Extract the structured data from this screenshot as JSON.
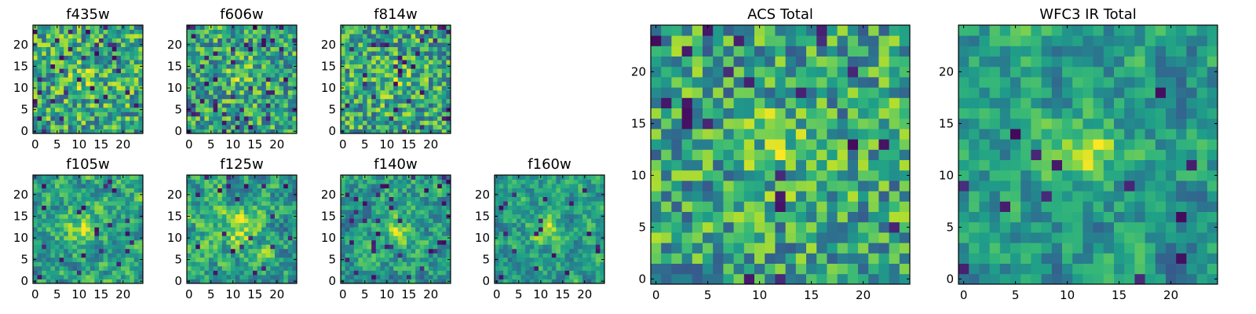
{
  "figure": {
    "description_colormap": "viridis-like"
  },
  "chart_data": [
    {
      "type": "heatmap",
      "title": "f435w",
      "xticks": [
        0,
        5,
        10,
        15,
        20
      ],
      "yticks": [
        0,
        5,
        10,
        15,
        20
      ],
      "xlim": [
        -0.5,
        24.5
      ],
      "ylim": [
        -0.5,
        24.5
      ],
      "grid": false,
      "seed": 11,
      "smooth": 0,
      "blob": 0.2,
      "cx": 12,
      "cy": 12,
      "sigma": 3,
      "dark_fraction": 0.06
    },
    {
      "type": "heatmap",
      "title": "f606w",
      "xticks": [
        0,
        5,
        10,
        15,
        20
      ],
      "yticks": [
        0,
        5,
        10,
        15,
        20
      ],
      "xlim": [
        -0.5,
        24.5
      ],
      "ylim": [
        -0.5,
        24.5
      ],
      "grid": false,
      "seed": 23,
      "smooth": 0,
      "blob": 0.3,
      "cx": 12,
      "cy": 13,
      "sigma": 2.5,
      "dark_fraction": 0.06
    },
    {
      "type": "heatmap",
      "title": "f814w",
      "xticks": [
        0,
        5,
        10,
        15,
        20
      ],
      "yticks": [
        0,
        5,
        10,
        15,
        20
      ],
      "xlim": [
        -0.5,
        24.5
      ],
      "ylim": [
        -0.5,
        24.5
      ],
      "grid": false,
      "seed": 37,
      "smooth": 0,
      "blob": 0.2,
      "cx": 12,
      "cy": 12,
      "sigma": 3,
      "dark_fraction": 0.05
    },
    {
      "type": "heatmap",
      "title": "f105w",
      "xticks": [
        0,
        5,
        10,
        15,
        20
      ],
      "yticks": [
        0,
        5,
        10,
        15,
        20
      ],
      "xlim": [
        -0.5,
        24.5
      ],
      "ylim": [
        -0.5,
        24.5
      ],
      "grid": false,
      "seed": 41,
      "smooth": 1,
      "blob": 0.35,
      "cx": 11,
      "cy": 13,
      "sigma": 3,
      "dark_fraction": 0.04
    },
    {
      "type": "heatmap",
      "title": "f125w",
      "xticks": [
        0,
        5,
        10,
        15,
        20
      ],
      "yticks": [
        0,
        5,
        10,
        15,
        20
      ],
      "xlim": [
        -0.5,
        24.5
      ],
      "ylim": [
        -0.5,
        24.5
      ],
      "grid": false,
      "seed": 53,
      "smooth": 1,
      "blob": 0.3,
      "cx": 12,
      "cy": 12,
      "sigma": 3,
      "dark_fraction": 0.04
    },
    {
      "type": "heatmap",
      "title": "f140w",
      "xticks": [
        0,
        5,
        10,
        15,
        20
      ],
      "yticks": [
        0,
        5,
        10,
        15,
        20
      ],
      "xlim": [
        -0.5,
        24.5
      ],
      "ylim": [
        -0.5,
        24.5
      ],
      "grid": false,
      "seed": 67,
      "smooth": 1,
      "blob": 0.3,
      "cx": 12,
      "cy": 12,
      "sigma": 3,
      "dark_fraction": 0.04
    },
    {
      "type": "heatmap",
      "title": "f160w",
      "xticks": [
        0,
        5,
        10,
        15,
        20
      ],
      "yticks": [
        0,
        5,
        10,
        15,
        20
      ],
      "xlim": [
        -0.5,
        24.5
      ],
      "ylim": [
        -0.5,
        24.5
      ],
      "grid": false,
      "seed": 79,
      "smooth": 1,
      "blob": 0.45,
      "cx": 11,
      "cy": 12,
      "sigma": 2.5,
      "dark_fraction": 0.04
    },
    {
      "type": "heatmap",
      "title": "ACS Total",
      "xticks": [
        0,
        5,
        10,
        15,
        20
      ],
      "yticks": [
        0,
        5,
        10,
        15,
        20
      ],
      "xlim": [
        -0.5,
        24.5
      ],
      "ylim": [
        -0.5,
        24.5
      ],
      "grid": false,
      "seed": 97,
      "smooth": 0,
      "blob": 0.3,
      "cx": 12,
      "cy": 13,
      "sigma": 2.5,
      "dark_fraction": 0.04
    },
    {
      "type": "heatmap",
      "title": "WFC3 IR Total",
      "xticks": [
        0,
        5,
        10,
        15,
        20
      ],
      "yticks": [
        0,
        5,
        10,
        15,
        20
      ],
      "xlim": [
        -0.5,
        24.5
      ],
      "ylim": [
        -0.5,
        24.5
      ],
      "grid": false,
      "seed": 131,
      "smooth": 1,
      "blob": 0.5,
      "cx": 12,
      "cy": 12.5,
      "sigma": 2.3,
      "dark_fraction": 0.03
    }
  ]
}
